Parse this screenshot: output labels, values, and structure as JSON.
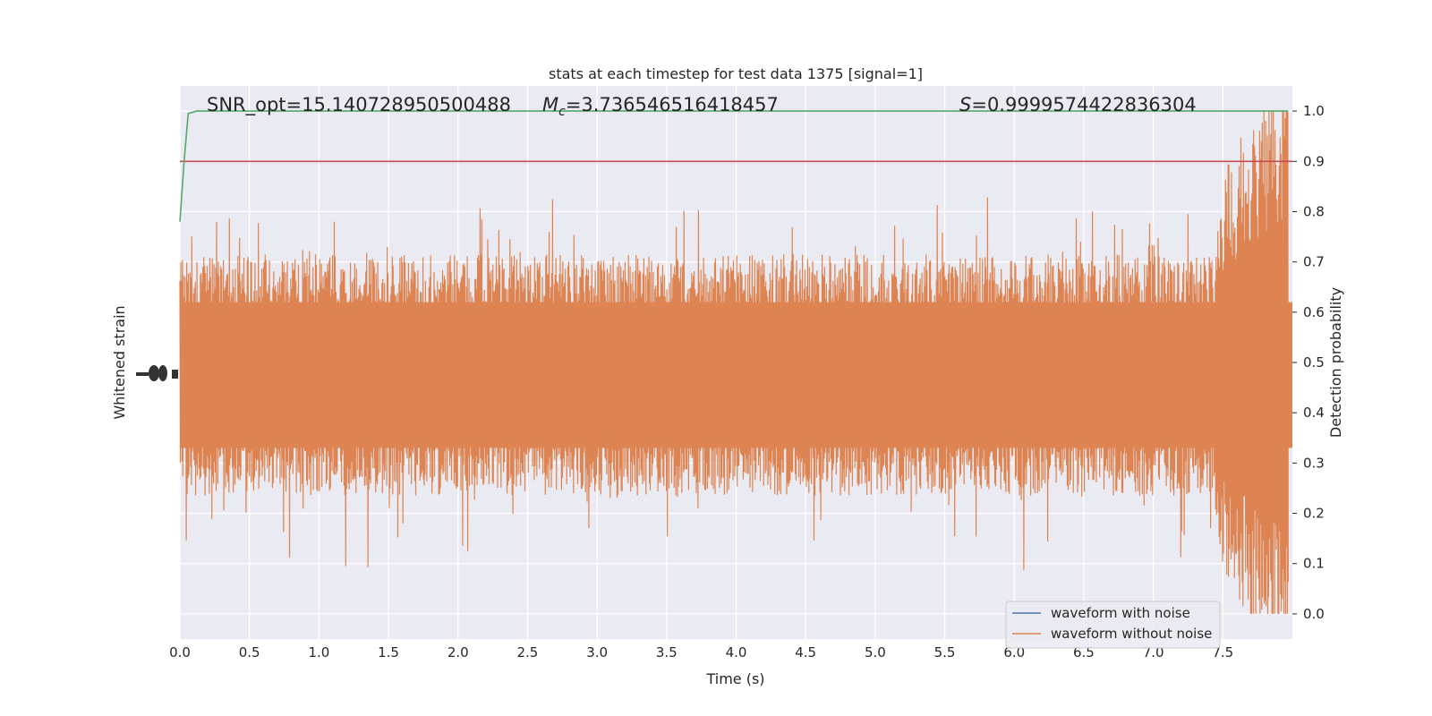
{
  "chart_data": {
    "type": "line",
    "title": "stats at each timestep for test data 1375 [signal=1]",
    "xlabel": "Time (s)",
    "ylabel_left": "Whitened strain",
    "ylabel_right": "Detection probability",
    "xlim": [
      0.0,
      8.0
    ],
    "ylim_right": [
      -0.05,
      1.05
    ],
    "grid": true,
    "x_ticks": [
      "0.0",
      "0.5",
      "1.0",
      "1.5",
      "2.0",
      "2.5",
      "3.0",
      "3.5",
      "4.0",
      "4.5",
      "5.0",
      "5.5",
      "6.0",
      "6.5",
      "7.0",
      "7.5"
    ],
    "y_ticks_right": [
      "0.0",
      "0.1",
      "0.2",
      "0.3",
      "0.4",
      "0.5",
      "0.6",
      "0.7",
      "0.8",
      "0.9",
      "1.0"
    ],
    "annotations": {
      "snr": "SNR_opt=15.140728950500488",
      "mc_symbol": "M",
      "mc_sub": "c",
      "mc_value": "=3.736546516418457",
      "s_symbol": "S",
      "s_value": "=0.9999574422836304"
    },
    "legend": {
      "position": "lower-right",
      "entries": [
        {
          "label": "waveform with noise",
          "color": "#4c72b0"
        },
        {
          "label": "waveform without noise",
          "color": "#dd8452"
        }
      ]
    },
    "detection_probability": {
      "color": "#55a868",
      "points": [
        [
          0.0,
          0.78
        ],
        [
          0.03,
          0.9
        ],
        [
          0.06,
          0.995
        ],
        [
          0.12,
          1.0
        ],
        [
          7.97,
          1.0
        ]
      ]
    },
    "threshold": {
      "value": 0.9,
      "color": "#c44e52"
    },
    "waveform_without_noise": {
      "color": "#dd8452",
      "description_free": true,
      "band": [
        0.33,
        0.62
      ],
      "spike_range": [
        0.1,
        0.9
      ]
    },
    "colors": {
      "plot_bg": "#eaeaf2",
      "grid": "#ffffff"
    }
  }
}
